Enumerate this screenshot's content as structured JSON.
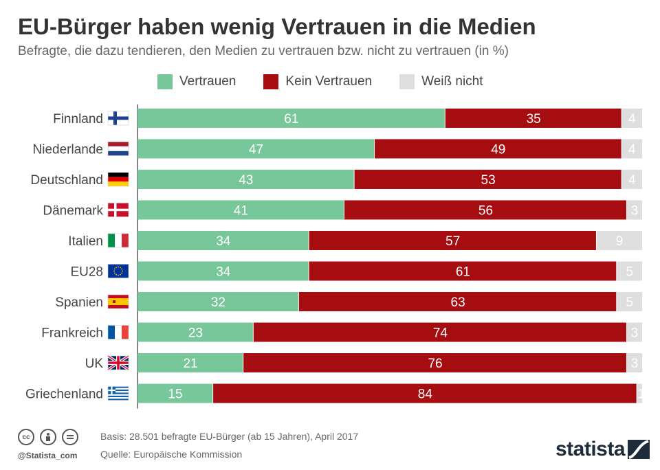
{
  "title": "EU-Bürger haben wenig Vertrauen in die Medien",
  "subtitle": "Befragte, die dazu tendieren, den Medien zu vertrauen bzw. nicht zu vertrauen (in %)",
  "legend": [
    {
      "label": "Vertrauen",
      "color": "#78c79a"
    },
    {
      "label": "Kein Vertrauen",
      "color": "#a50d10"
    },
    {
      "label": "Weiß nicht",
      "color": "#dedede"
    }
  ],
  "chart_data": {
    "type": "bar",
    "orientation": "horizontal",
    "stacked": true,
    "xlim": [
      0,
      100
    ],
    "categories": [
      "Finnland",
      "Niederlande",
      "Deutschland",
      "Dänemark",
      "Italien",
      "EU28",
      "Spanien",
      "Frankreich",
      "UK",
      "Griechenland"
    ],
    "flags": [
      "finland-flag",
      "netherlands-flag",
      "germany-flag",
      "denmark-flag",
      "italy-flag",
      "eu-flag",
      "spain-flag",
      "france-flag",
      "uk-flag",
      "greece-flag"
    ],
    "series": [
      {
        "name": "Vertrauen",
        "color": "#78c79a",
        "values": [
          61,
          47,
          43,
          41,
          34,
          34,
          32,
          23,
          21,
          15
        ]
      },
      {
        "name": "Kein Vertrauen",
        "color": "#a50d10",
        "values": [
          35,
          49,
          53,
          56,
          57,
          61,
          63,
          74,
          76,
          84
        ]
      },
      {
        "name": "Weiß nicht",
        "color": "#dedede",
        "values": [
          4,
          4,
          4,
          3,
          9,
          5,
          5,
          3,
          3,
          1
        ]
      }
    ]
  },
  "footer": {
    "handle": "@Statista_com",
    "basis": "Basis: 28.501 befragte EU-Bürger (ab 15 Jahren), April 2017",
    "source": "Quelle: Europäische Kommission",
    "brand": "statista"
  }
}
